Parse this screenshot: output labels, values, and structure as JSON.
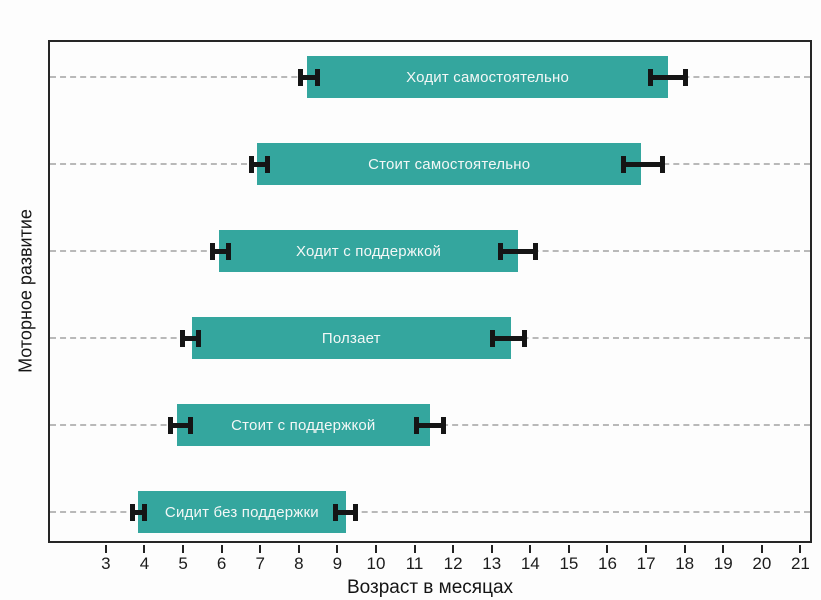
{
  "chart_data": {
    "type": "bar",
    "subtype": "horizontal-range-bar",
    "title": "",
    "xlabel": "Возраст в месяцах",
    "ylabel": "Моторное развитие",
    "xlim": [
      1.5,
      21.3
    ],
    "xticks": [
      3,
      4,
      5,
      6,
      7,
      8,
      9,
      10,
      11,
      12,
      13,
      14,
      15,
      16,
      17,
      18,
      19,
      20,
      21
    ],
    "grid": "horizontal-dashed",
    "legend_position": "none",
    "bar_color": "#34a69e",
    "bar_label_color": "#f3f7f6",
    "whisker_color": "#151515",
    "gridline_color": "#b9b9b9",
    "milestones": [
      {
        "label": "Ходит самостоятельно",
        "start": 8.2,
        "end": 17.6,
        "err_left": [
          8.0,
          8.5
        ],
        "err_right": [
          17.1,
          18.1
        ]
      },
      {
        "label": "Стоит самостоятельно",
        "start": 6.9,
        "end": 16.9,
        "err_left": [
          6.7,
          7.2
        ],
        "err_right": [
          16.4,
          17.5
        ]
      },
      {
        "label": "Ходит с поддержкой",
        "start": 5.9,
        "end": 13.7,
        "err_left": [
          5.7,
          6.2
        ],
        "err_right": [
          13.2,
          14.2
        ]
      },
      {
        "label": "Ползает",
        "start": 5.2,
        "end": 13.5,
        "err_left": [
          4.9,
          5.4
        ],
        "err_right": [
          13.0,
          13.9
        ]
      },
      {
        "label": "Стоит с поддержкой",
        "start": 4.8,
        "end": 11.4,
        "err_left": [
          4.6,
          5.2
        ],
        "err_right": [
          11.0,
          11.8
        ]
      },
      {
        "label": "Сидит без поддержки",
        "start": 3.8,
        "end": 9.2,
        "err_left": [
          3.6,
          4.0
        ],
        "err_right": [
          8.9,
          9.5
        ]
      }
    ]
  }
}
